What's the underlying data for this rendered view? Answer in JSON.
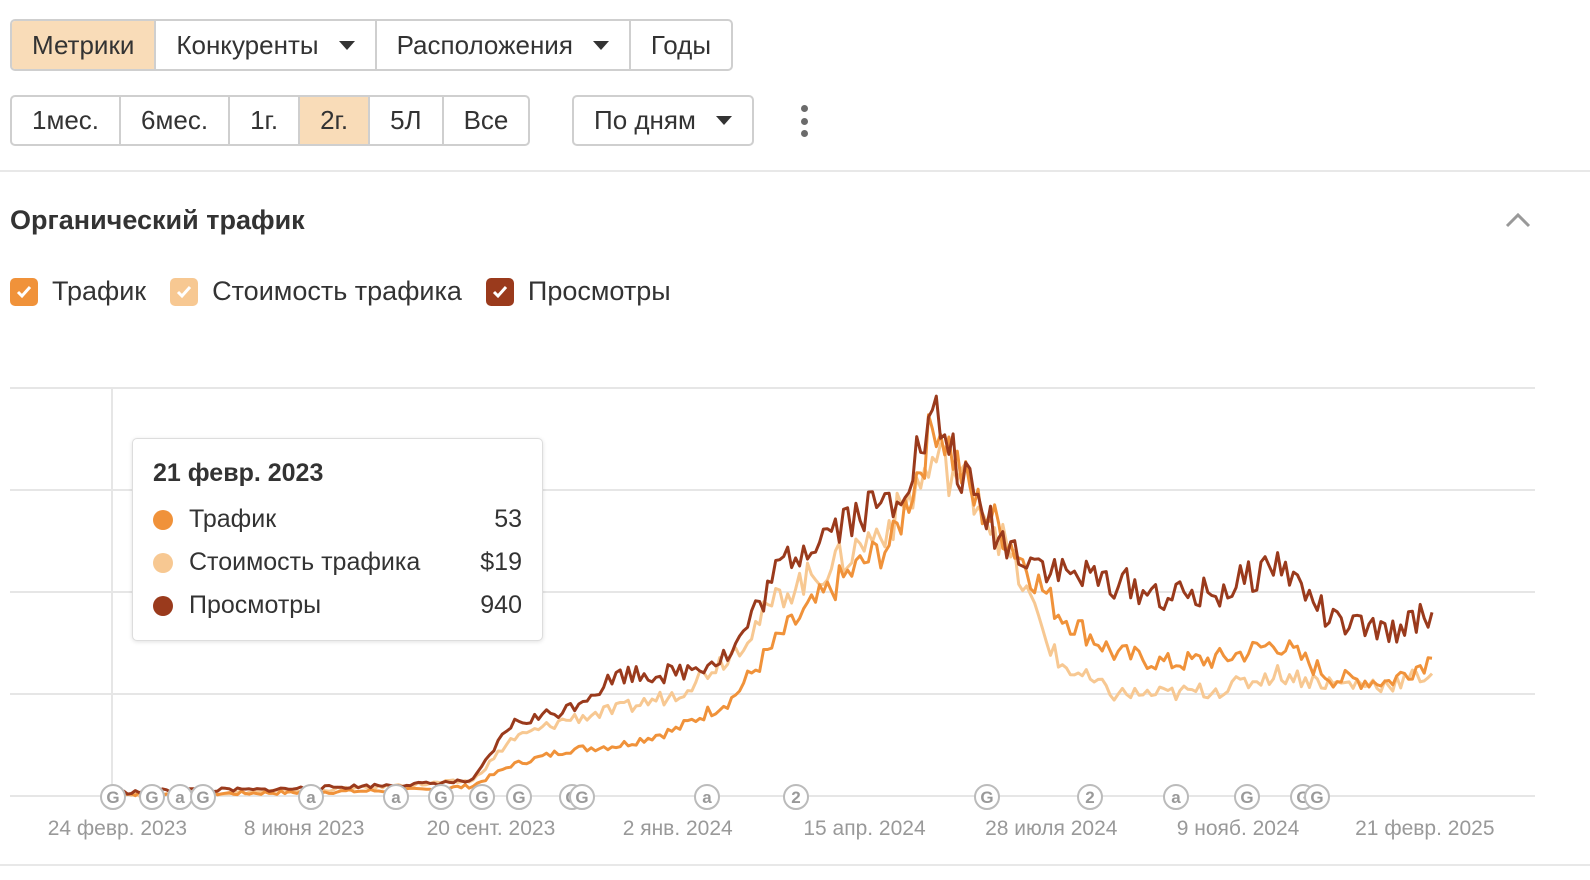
{
  "tabs_top": [
    {
      "label": "Метрики",
      "active": true,
      "dropdown": false
    },
    {
      "label": "Конкуренты",
      "active": false,
      "dropdown": true
    },
    {
      "label": "Расположения",
      "active": false,
      "dropdown": true
    },
    {
      "label": "Годы",
      "active": false,
      "dropdown": false
    }
  ],
  "ranges": [
    {
      "label": "1мес.",
      "active": false
    },
    {
      "label": "6мес.",
      "active": false
    },
    {
      "label": "1г.",
      "active": false
    },
    {
      "label": "2г.",
      "active": true
    },
    {
      "label": "5Л",
      "active": false
    },
    {
      "label": "Все",
      "active": false
    }
  ],
  "granularity": {
    "label": "По дням"
  },
  "section": {
    "title": "Органический трафик"
  },
  "colors": {
    "traffic": "#f0923a",
    "cost": "#f7c892",
    "views": "#9a3a1c",
    "active_bg": "#f9dcb8",
    "grid": "#e6e6e6"
  },
  "legend": [
    {
      "label": "Трафик",
      "color": "#f0923a"
    },
    {
      "label": "Стоимость трафика",
      "color": "#f7c892"
    },
    {
      "label": "Просмотры",
      "color": "#9a3a1c"
    }
  ],
  "tooltip": {
    "date": "21 февр. 2023",
    "rows": [
      {
        "label": "Трафик",
        "value": "53",
        "color": "#f0923a"
      },
      {
        "label": "Стоимость трафика",
        "value": "$19",
        "color": "#f7c892"
      },
      {
        "label": "Просмотры",
        "value": "940",
        "color": "#9a3a1c"
      }
    ]
  },
  "chart_data": {
    "type": "line",
    "x_axis_type": "date",
    "x_tick_labels": [
      "24 февр. 2023",
      "8 июня 2023",
      "20 сент. 2023",
      "2 янв. 2024",
      "15 апр. 2024",
      "28 июля 2024",
      "9 нояб. 2024",
      "21 февр. 2025"
    ],
    "y_axis_labels_shown": false,
    "grid": "horizontal",
    "x": [
      "2023-02-21",
      "2023-04-01",
      "2023-05-15",
      "2023-06-15",
      "2023-07-15",
      "2023-08-15",
      "2023-09-10",
      "2023-10-01",
      "2023-11-01",
      "2023-12-01",
      "2024-01-01",
      "2024-02-01",
      "2024-03-01",
      "2024-04-01",
      "2024-05-01",
      "2024-05-25",
      "2024-06-15",
      "2024-07-01",
      "2024-08-01",
      "2024-09-01",
      "2024-10-01",
      "2024-11-01",
      "2024-12-01",
      "2025-01-01",
      "2025-02-01",
      "2025-02-25"
    ],
    "series": [
      {
        "name": "Трафик",
        "values": [
          2,
          2,
          3,
          4,
          5,
          6,
          10,
          30,
          45,
          50,
          65,
          95,
          160,
          210,
          250,
          370,
          290,
          260,
          180,
          140,
          130,
          135,
          150,
          115,
          112,
          135
        ]
      },
      {
        "name": "Стоимость трафика",
        "values": [
          1,
          2,
          4,
          6,
          8,
          12,
          15,
          55,
          75,
          85,
          100,
          140,
          200,
          230,
          270,
          330,
          300,
          250,
          130,
          100,
          100,
          105,
          120,
          110,
          110,
          120
        ]
      },
      {
        "name": "Просмотры",
        "values": [
          3,
          6,
          6,
          8,
          10,
          12,
          15,
          70,
          85,
          120,
          120,
          140,
          230,
          270,
          290,
          370,
          290,
          250,
          220,
          210,
          195,
          200,
          230,
          170,
          160,
          180
        ]
      }
    ],
    "annotation_markers": [
      "G",
      "G",
      "a",
      "G",
      "a",
      "a",
      "G",
      "G",
      "G",
      "G",
      "G",
      "a",
      "2",
      "G",
      "2",
      "a",
      "G",
      "G",
      "G"
    ]
  }
}
